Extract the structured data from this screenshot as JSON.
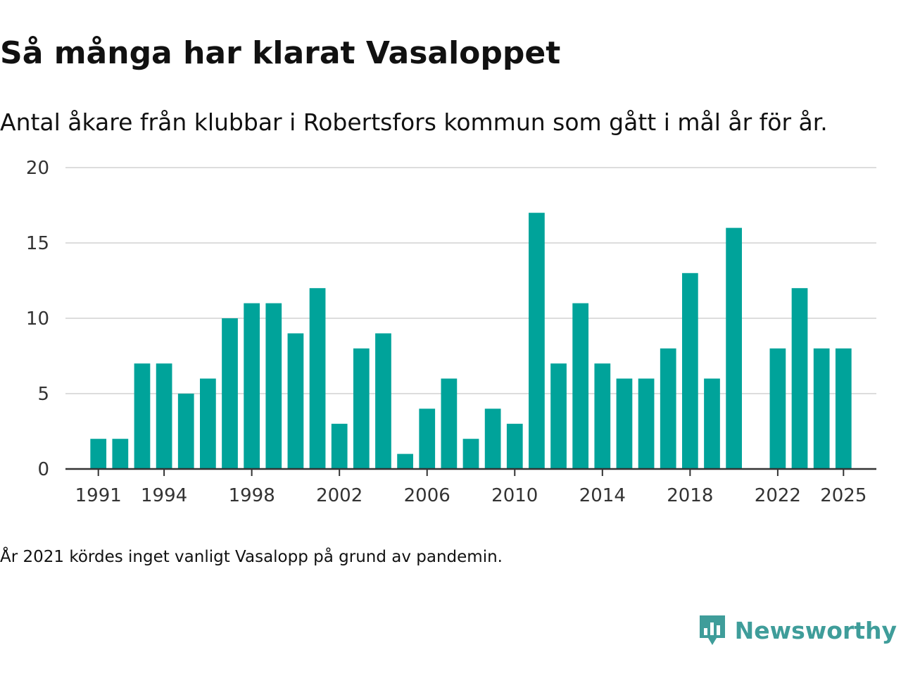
{
  "title": "Så många har klarat Vasaloppet",
  "subtitle": "Antal åkare från klubbar i Robertsfors kommun som gått i mål år för år.",
  "note": "År 2021 kördes inget vanligt Vasalopp på grund av pandemin.",
  "brand": {
    "name": "Newsworthy",
    "icon": "newsworthy-logo-icon",
    "color": "#3f9d9a"
  },
  "colors": {
    "bar": "#00a39a",
    "grid": "#dddddd",
    "axis": "#333333"
  },
  "chart_data": {
    "type": "bar",
    "x": [
      1991,
      1992,
      1993,
      1994,
      1995,
      1996,
      1997,
      1998,
      1999,
      2000,
      2001,
      2002,
      2003,
      2004,
      2005,
      2006,
      2007,
      2008,
      2009,
      2010,
      2011,
      2012,
      2013,
      2014,
      2015,
      2016,
      2017,
      2018,
      2019,
      2020,
      2022,
      2023,
      2024,
      2025
    ],
    "values": [
      2,
      2,
      7,
      7,
      5,
      6,
      10,
      11,
      11,
      9,
      12,
      3,
      8,
      9,
      1,
      4,
      6,
      2,
      4,
      3,
      17,
      7,
      11,
      7,
      6,
      6,
      8,
      13,
      6,
      16,
      8,
      12,
      8,
      8
    ],
    "xticks": [
      1991,
      1994,
      1998,
      2002,
      2006,
      2010,
      2014,
      2018,
      2022,
      2025
    ],
    "yticks": [
      0,
      5,
      10,
      15,
      20
    ],
    "ylim": [
      0,
      20
    ],
    "xlim": [
      1989.5,
      2026.5
    ],
    "grid": true
  }
}
